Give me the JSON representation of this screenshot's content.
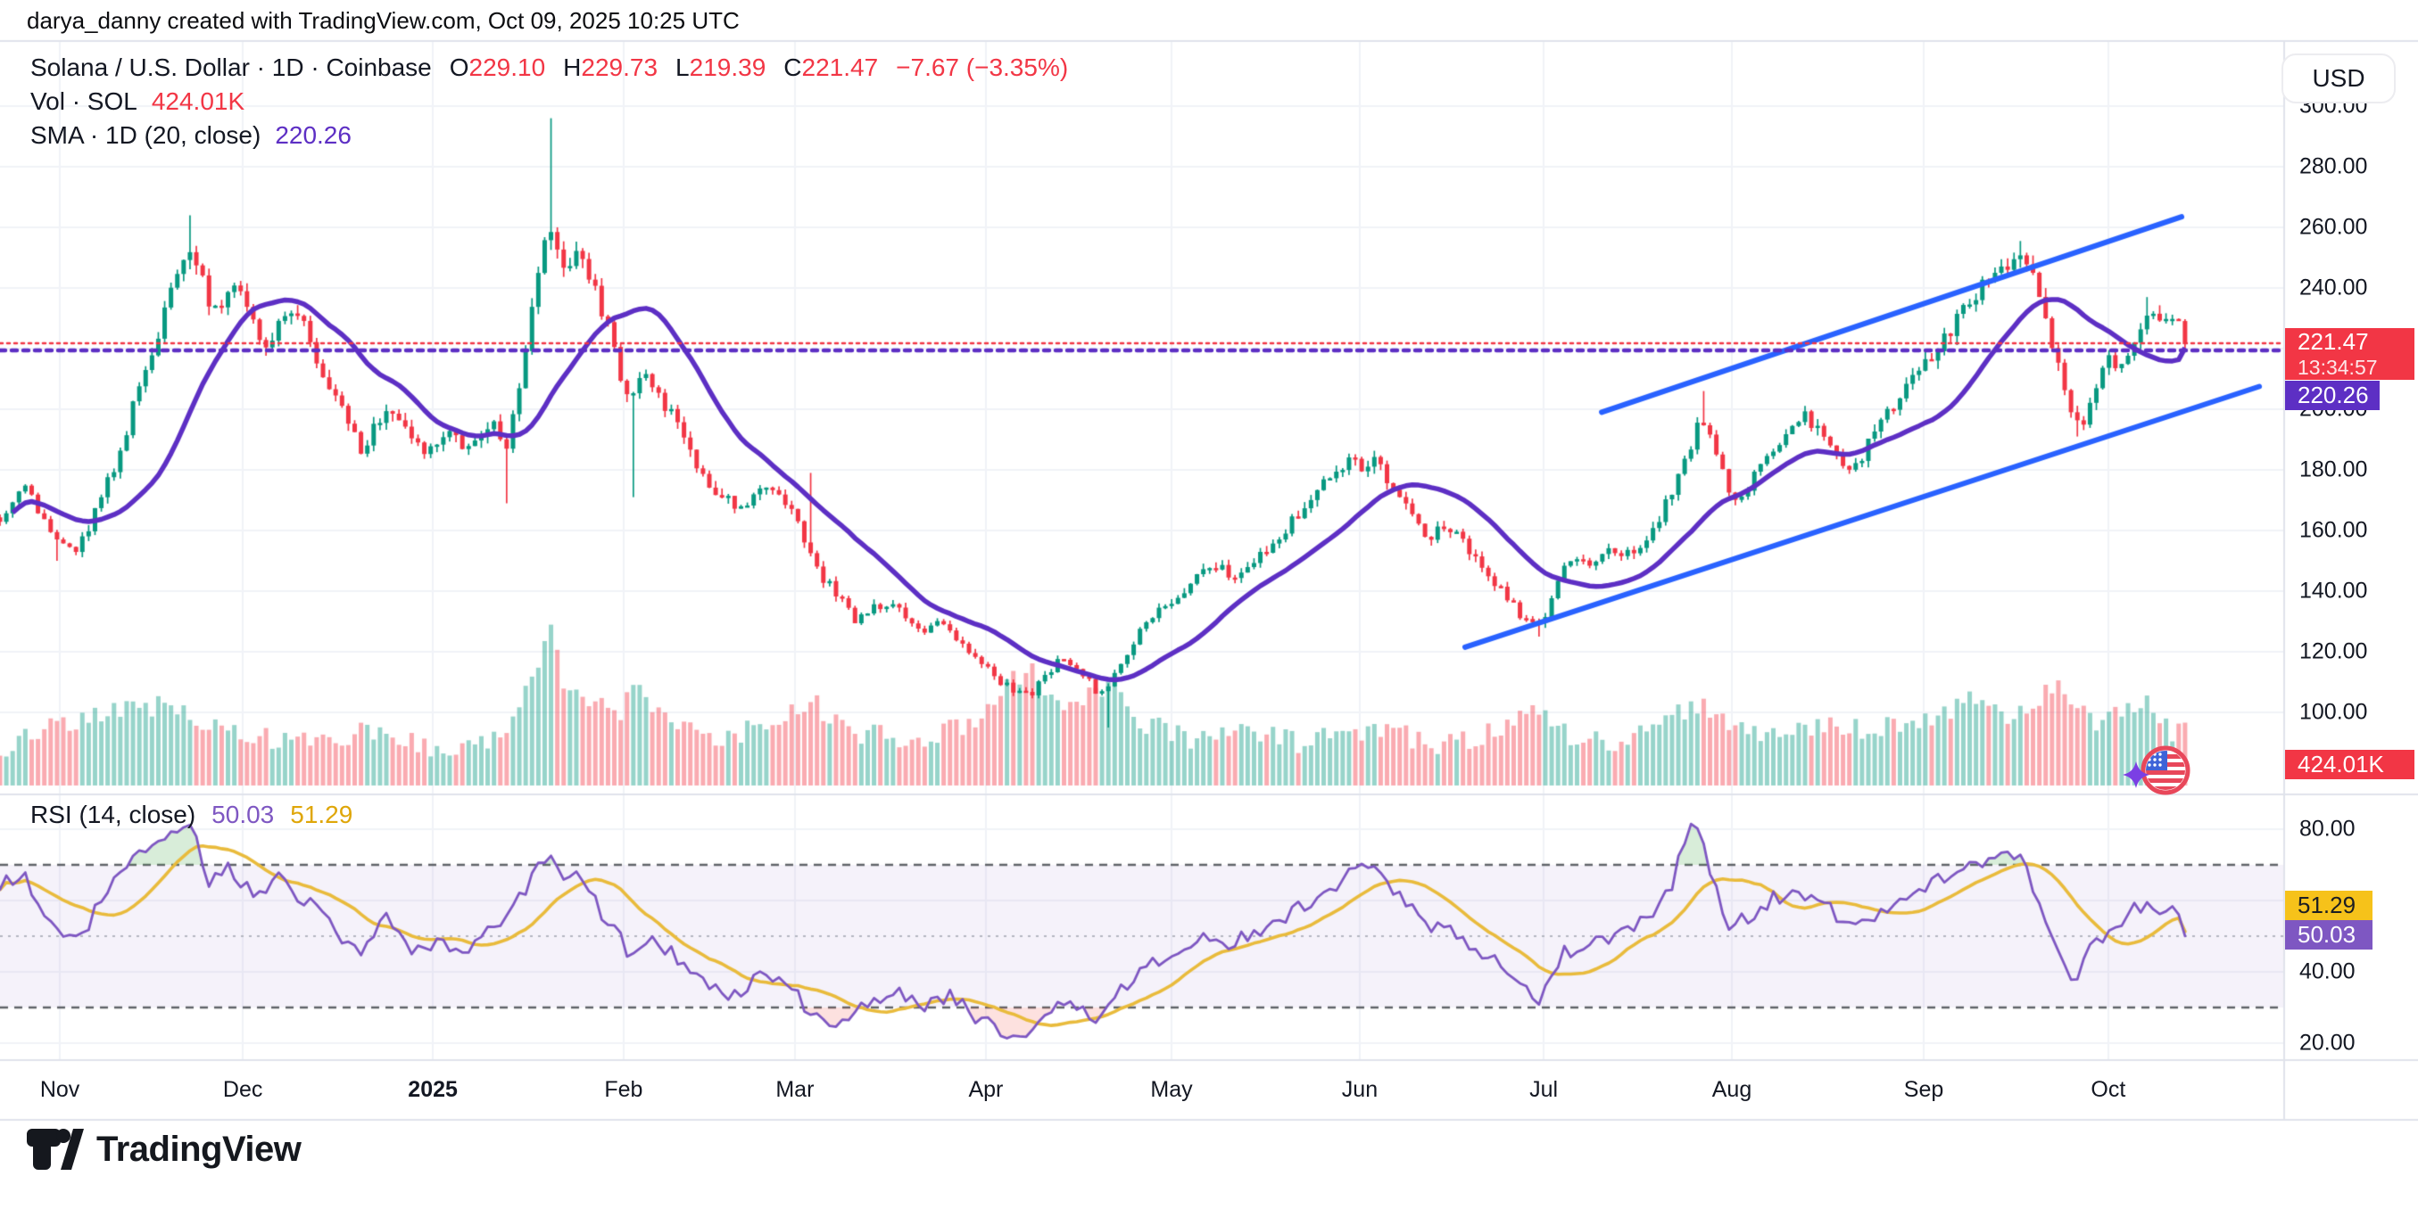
{
  "attribution": "darya_danny created with TradingView.com, Oct 09, 2025 10:25 UTC",
  "legend": {
    "title": "Solana / U.S. Dollar · 1D · Coinbase",
    "open": {
      "label": "O",
      "value": "229.10"
    },
    "high": {
      "label": "H",
      "value": "229.73"
    },
    "low": {
      "label": "L",
      "value": "219.39"
    },
    "close": {
      "label": "C",
      "value": "221.47"
    },
    "change": "−7.67 (−3.35%)",
    "vol_label": "Vol · SOL",
    "vol_value": "424.01K",
    "sma_label": "SMA · 1D (20, close)",
    "sma_value": "220.26"
  },
  "rsi_legend": {
    "title": "RSI (14, close)",
    "value": "50.03",
    "ma_value": "51.29"
  },
  "toolbar": {
    "currency": "USD"
  },
  "badges": {
    "last_price": "221.47",
    "countdown": "13:34:57",
    "sma": "220.26",
    "volume": "424.01K",
    "rsi_ma": "51.29",
    "rsi": "50.03"
  },
  "logo": {
    "wordmark": "TradingView"
  },
  "icons": [
    "tradingview-logo-icon",
    "us-flag-icon",
    "sparkle-icon"
  ],
  "chart_data": {
    "type": "candlestick",
    "symbol": "Solana / U.S. Dollar",
    "interval": "1D",
    "exchange": "Coinbase",
    "currency": "USD",
    "last_candle": {
      "open": 229.1,
      "high": 229.73,
      "low": 219.39,
      "close": 221.47
    },
    "change": -7.67,
    "change_pct": -3.35,
    "volume_label": "424.01K",
    "sma20_value": 220.26,
    "rsi_value": 50.03,
    "rsi_ma_value": 51.29,
    "countdown": "13:34:57",
    "price_axis": {
      "ticks": [
        300,
        280,
        260,
        240,
        200,
        180,
        160,
        140,
        120,
        100
      ],
      "grid": [
        300,
        280,
        260,
        240,
        220,
        200,
        180,
        160,
        140,
        120,
        100
      ],
      "visible_range": [
        76,
        322
      ]
    },
    "rsi_axis": {
      "ticks": [
        80,
        40,
        20
      ],
      "grid": [
        80,
        60,
        40,
        20
      ],
      "bands": [
        70,
        50,
        30
      ]
    },
    "time_axis": [
      {
        "label": "Nov",
        "t": 0.0262,
        "bold": false
      },
      {
        "label": "Dec",
        "t": 0.1063,
        "bold": false
      },
      {
        "label": "2025",
        "t": 0.1895,
        "bold": true
      },
      {
        "label": "Feb",
        "t": 0.273,
        "bold": false
      },
      {
        "label": "Mar",
        "t": 0.348,
        "bold": false
      },
      {
        "label": "Apr",
        "t": 0.4316,
        "bold": false
      },
      {
        "label": "May",
        "t": 0.5129,
        "bold": false
      },
      {
        "label": "Jun",
        "t": 0.5953,
        "bold": false
      },
      {
        "label": "Jul",
        "t": 0.6758,
        "bold": false
      },
      {
        "label": "Aug",
        "t": 0.7582,
        "bold": false
      },
      {
        "label": "Sep",
        "t": 0.8422,
        "bold": false
      },
      {
        "label": "Oct",
        "t": 0.923,
        "bold": false
      }
    ],
    "price_anchors": [
      [
        0.0,
        165
      ],
      [
        0.01,
        174
      ],
      [
        0.018,
        166
      ],
      [
        0.025,
        155
      ],
      [
        0.034,
        153
      ],
      [
        0.045,
        172
      ],
      [
        0.052,
        185
      ],
      [
        0.058,
        200
      ],
      [
        0.065,
        213
      ],
      [
        0.07,
        228
      ],
      [
        0.075,
        243
      ],
      [
        0.08,
        248
      ],
      [
        0.084,
        252
      ],
      [
        0.088,
        244
      ],
      [
        0.092,
        230
      ],
      [
        0.096,
        235
      ],
      [
        0.1,
        240
      ],
      [
        0.104,
        244
      ],
      [
        0.11,
        232
      ],
      [
        0.116,
        220
      ],
      [
        0.122,
        230
      ],
      [
        0.128,
        232
      ],
      [
        0.134,
        226
      ],
      [
        0.14,
        215
      ],
      [
        0.146,
        205
      ],
      [
        0.152,
        196
      ],
      [
        0.158,
        186
      ],
      [
        0.163,
        192
      ],
      [
        0.168,
        200
      ],
      [
        0.174,
        197
      ],
      [
        0.18,
        190
      ],
      [
        0.186,
        186
      ],
      [
        0.192,
        190
      ],
      [
        0.198,
        194
      ],
      [
        0.204,
        187
      ],
      [
        0.21,
        190
      ],
      [
        0.216,
        196
      ],
      [
        0.222,
        188
      ],
      [
        0.227,
        205
      ],
      [
        0.232,
        226
      ],
      [
        0.236,
        248
      ],
      [
        0.24,
        264
      ],
      [
        0.244,
        250
      ],
      [
        0.248,
        246
      ],
      [
        0.252,
        252
      ],
      [
        0.256,
        248
      ],
      [
        0.26,
        240
      ],
      [
        0.264,
        232
      ],
      [
        0.268,
        222
      ],
      [
        0.272,
        210
      ],
      [
        0.276,
        202
      ],
      [
        0.28,
        208
      ],
      [
        0.284,
        212
      ],
      [
        0.288,
        206
      ],
      [
        0.292,
        200
      ],
      [
        0.296,
        196
      ],
      [
        0.3,
        190
      ],
      [
        0.305,
        182
      ],
      [
        0.31,
        176
      ],
      [
        0.316,
        172
      ],
      [
        0.322,
        168
      ],
      [
        0.328,
        170
      ],
      [
        0.334,
        176
      ],
      [
        0.34,
        172
      ],
      [
        0.346,
        167
      ],
      [
        0.352,
        158
      ],
      [
        0.356,
        148
      ],
      [
        0.362,
        143
      ],
      [
        0.368,
        137
      ],
      [
        0.374,
        130
      ],
      [
        0.38,
        133
      ],
      [
        0.386,
        136
      ],
      [
        0.392,
        134
      ],
      [
        0.398,
        130
      ],
      [
        0.404,
        127
      ],
      [
        0.41,
        130
      ],
      [
        0.416,
        126
      ],
      [
        0.422,
        121
      ],
      [
        0.428,
        118
      ],
      [
        0.434,
        113
      ],
      [
        0.44,
        109
      ],
      [
        0.446,
        106
      ],
      [
        0.452,
        107
      ],
      [
        0.458,
        112
      ],
      [
        0.464,
        119
      ],
      [
        0.47,
        115
      ],
      [
        0.476,
        111
      ],
      [
        0.481,
        106
      ],
      [
        0.486,
        109
      ],
      [
        0.492,
        117
      ],
      [
        0.498,
        126
      ],
      [
        0.504,
        131
      ],
      [
        0.51,
        135
      ],
      [
        0.516,
        139
      ],
      [
        0.522,
        143
      ],
      [
        0.528,
        146
      ],
      [
        0.534,
        148
      ],
      [
        0.54,
        145
      ],
      [
        0.546,
        149
      ],
      [
        0.552,
        153
      ],
      [
        0.558,
        156
      ],
      [
        0.564,
        161
      ],
      [
        0.57,
        167
      ],
      [
        0.576,
        172
      ],
      [
        0.582,
        177
      ],
      [
        0.588,
        182
      ],
      [
        0.592,
        184
      ],
      [
        0.597,
        180
      ],
      [
        0.602,
        183
      ],
      [
        0.608,
        176
      ],
      [
        0.614,
        170
      ],
      [
        0.62,
        163
      ],
      [
        0.626,
        158
      ],
      [
        0.632,
        161
      ],
      [
        0.638,
        158
      ],
      [
        0.644,
        153
      ],
      [
        0.65,
        147
      ],
      [
        0.656,
        141
      ],
      [
        0.662,
        136
      ],
      [
        0.668,
        130
      ],
      [
        0.673,
        127
      ],
      [
        0.678,
        135
      ],
      [
        0.684,
        146
      ],
      [
        0.69,
        151
      ],
      [
        0.696,
        149
      ],
      [
        0.702,
        152
      ],
      [
        0.708,
        154
      ],
      [
        0.714,
        151
      ],
      [
        0.72,
        157
      ],
      [
        0.726,
        164
      ],
      [
        0.732,
        172
      ],
      [
        0.737,
        183
      ],
      [
        0.742,
        192
      ],
      [
        0.746,
        196
      ],
      [
        0.75,
        188
      ],
      [
        0.754,
        180
      ],
      [
        0.758,
        172
      ],
      [
        0.762,
        169
      ],
      [
        0.766,
        176
      ],
      [
        0.772,
        184
      ],
      [
        0.778,
        189
      ],
      [
        0.784,
        193
      ],
      [
        0.79,
        198
      ],
      [
        0.795,
        194
      ],
      [
        0.8,
        190
      ],
      [
        0.806,
        184
      ],
      [
        0.812,
        180
      ],
      [
        0.818,
        188
      ],
      [
        0.824,
        196
      ],
      [
        0.83,
        203
      ],
      [
        0.836,
        209
      ],
      [
        0.842,
        215
      ],
      [
        0.848,
        221
      ],
      [
        0.854,
        227
      ],
      [
        0.86,
        233
      ],
      [
        0.866,
        239
      ],
      [
        0.872,
        244
      ],
      [
        0.878,
        248
      ],
      [
        0.884,
        251
      ],
      [
        0.888,
        247
      ],
      [
        0.892,
        238
      ],
      [
        0.896,
        228
      ],
      [
        0.9,
        217
      ],
      [
        0.904,
        207
      ],
      [
        0.908,
        199
      ],
      [
        0.912,
        197
      ],
      [
        0.916,
        204
      ],
      [
        0.92,
        211
      ],
      [
        0.924,
        217
      ],
      [
        0.928,
        214
      ],
      [
        0.932,
        220
      ],
      [
        0.936,
        226
      ],
      [
        0.94,
        231
      ],
      [
        0.944,
        234
      ],
      [
        0.948,
        229
      ],
      [
        0.952,
        231
      ],
      [
        0.9566,
        221.47
      ]
    ],
    "wick_overrides": [
      {
        "t": 0.025,
        "low": 150
      },
      {
        "t": 0.084,
        "high": 264
      },
      {
        "t": 0.222,
        "low": 169
      },
      {
        "t": 0.24,
        "high": 296
      },
      {
        "t": 0.278,
        "low": 171
      },
      {
        "t": 0.354,
        "high": 179
      },
      {
        "t": 0.484,
        "low": 95
      },
      {
        "t": 0.673,
        "low": 125
      },
      {
        "t": 0.745,
        "high": 206
      },
      {
        "t": 0.885,
        "high": 255.5
      },
      {
        "t": 0.91,
        "low": 191
      },
      {
        "t": 0.941,
        "high": 237
      }
    ],
    "volume_anchors": [
      [
        0.0,
        0.1
      ],
      [
        0.03,
        0.25
      ],
      [
        0.05,
        0.3
      ],
      [
        0.07,
        0.35
      ],
      [
        0.083,
        0.3
      ],
      [
        0.1,
        0.2
      ],
      [
        0.13,
        0.12
      ],
      [
        0.163,
        0.2
      ],
      [
        0.19,
        0.1
      ],
      [
        0.22,
        0.15
      ],
      [
        0.236,
        0.55
      ],
      [
        0.24,
        0.85
      ],
      [
        0.248,
        0.4
      ],
      [
        0.262,
        0.35
      ],
      [
        0.272,
        0.3
      ],
      [
        0.278,
        0.45
      ],
      [
        0.3,
        0.2
      ],
      [
        0.32,
        0.15
      ],
      [
        0.354,
        0.38
      ],
      [
        0.37,
        0.2
      ],
      [
        0.4,
        0.15
      ],
      [
        0.43,
        0.25
      ],
      [
        0.44,
        0.45
      ],
      [
        0.452,
        0.55
      ],
      [
        0.465,
        0.3
      ],
      [
        0.484,
        0.45
      ],
      [
        0.5,
        0.25
      ],
      [
        0.52,
        0.15
      ],
      [
        0.547,
        0.2
      ],
      [
        0.57,
        0.12
      ],
      [
        0.6,
        0.22
      ],
      [
        0.63,
        0.12
      ],
      [
        0.658,
        0.2
      ],
      [
        0.672,
        0.3
      ],
      [
        0.69,
        0.15
      ],
      [
        0.71,
        0.12
      ],
      [
        0.735,
        0.3
      ],
      [
        0.745,
        0.35
      ],
      [
        0.76,
        0.2
      ],
      [
        0.78,
        0.18
      ],
      [
        0.8,
        0.22
      ],
      [
        0.82,
        0.2
      ],
      [
        0.84,
        0.25
      ],
      [
        0.852,
        0.3
      ],
      [
        0.862,
        0.4
      ],
      [
        0.878,
        0.3
      ],
      [
        0.89,
        0.35
      ],
      [
        0.9,
        0.45
      ],
      [
        0.915,
        0.25
      ],
      [
        0.93,
        0.3
      ],
      [
        0.942,
        0.35
      ],
      [
        0.95,
        0.2
      ],
      [
        0.9566,
        0.22
      ]
    ],
    "rsi": {
      "period": 14,
      "anchors": [
        [
          0.0,
          64
        ],
        [
          0.01,
          68
        ],
        [
          0.02,
          55
        ],
        [
          0.034,
          48
        ],
        [
          0.05,
          66
        ],
        [
          0.065,
          75
        ],
        [
          0.075,
          80
        ],
        [
          0.084,
          81
        ],
        [
          0.092,
          65
        ],
        [
          0.1,
          70
        ],
        [
          0.11,
          62
        ],
        [
          0.122,
          66
        ],
        [
          0.134,
          60
        ],
        [
          0.146,
          52
        ],
        [
          0.158,
          44
        ],
        [
          0.163,
          50
        ],
        [
          0.17,
          55
        ],
        [
          0.18,
          46
        ],
        [
          0.192,
          49
        ],
        [
          0.204,
          45
        ],
        [
          0.216,
          52
        ],
        [
          0.227,
          60
        ],
        [
          0.236,
          70
        ],
        [
          0.24,
          74
        ],
        [
          0.248,
          64
        ],
        [
          0.252,
          67
        ],
        [
          0.26,
          60
        ],
        [
          0.268,
          52
        ],
        [
          0.276,
          45
        ],
        [
          0.284,
          50
        ],
        [
          0.292,
          46
        ],
        [
          0.3,
          42
        ],
        [
          0.31,
          37
        ],
        [
          0.322,
          33
        ],
        [
          0.334,
          40
        ],
        [
          0.346,
          36
        ],
        [
          0.356,
          27
        ],
        [
          0.368,
          25
        ],
        [
          0.38,
          32
        ],
        [
          0.392,
          35
        ],
        [
          0.404,
          31
        ],
        [
          0.416,
          33
        ],
        [
          0.428,
          27
        ],
        [
          0.44,
          23
        ],
        [
          0.452,
          22
        ],
        [
          0.464,
          33
        ],
        [
          0.476,
          28
        ],
        [
          0.481,
          25
        ],
        [
          0.492,
          36
        ],
        [
          0.504,
          42
        ],
        [
          0.516,
          46
        ],
        [
          0.528,
          50
        ],
        [
          0.54,
          48
        ],
        [
          0.552,
          52
        ],
        [
          0.564,
          56
        ],
        [
          0.576,
          61
        ],
        [
          0.588,
          66
        ],
        [
          0.592,
          68
        ],
        [
          0.602,
          70
        ],
        [
          0.614,
          60
        ],
        [
          0.626,
          53
        ],
        [
          0.638,
          51
        ],
        [
          0.65,
          45
        ],
        [
          0.662,
          38
        ],
        [
          0.673,
          31
        ],
        [
          0.684,
          45
        ],
        [
          0.696,
          48
        ],
        [
          0.708,
          50
        ],
        [
          0.72,
          54
        ],
        [
          0.732,
          63
        ],
        [
          0.74,
          84
        ],
        [
          0.746,
          74
        ],
        [
          0.752,
          62
        ],
        [
          0.758,
          52
        ],
        [
          0.766,
          56
        ],
        [
          0.775,
          60
        ],
        [
          0.785,
          63
        ],
        [
          0.795,
          60
        ],
        [
          0.806,
          55
        ],
        [
          0.812,
          52
        ],
        [
          0.824,
          58
        ],
        [
          0.836,
          62
        ],
        [
          0.848,
          66
        ],
        [
          0.86,
          69
        ],
        [
          0.872,
          72
        ],
        [
          0.884,
          74
        ],
        [
          0.892,
          60
        ],
        [
          0.9,
          45
        ],
        [
          0.908,
          38
        ],
        [
          0.916,
          47
        ],
        [
          0.924,
          53
        ],
        [
          0.932,
          56
        ],
        [
          0.94,
          60
        ],
        [
          0.948,
          55
        ],
        [
          0.952,
          58
        ],
        [
          0.9566,
          50.03
        ]
      ]
    },
    "channel": {
      "upper": {
        "t1": 0.7012,
        "p1": 199.0,
        "t2": 0.9551,
        "p2": 263.5
      },
      "lower": {
        "t1": 0.6414,
        "p1": 121.5,
        "t2": 0.9891,
        "p2": 207.5
      }
    },
    "price_lines": [
      {
        "value": 221.47,
        "color": "#f23645"
      },
      {
        "value": 220.26,
        "color": "#5d2fc4"
      }
    ],
    "colors": {
      "up": "#089981",
      "down": "#f23645",
      "sma": "#5d2fc4",
      "channel": "#2962ff",
      "rsi": "#7e57c2",
      "rsi_ma": "#e9bb3c",
      "grid": "#f1f3f8",
      "separator": "#e0e3eb",
      "vol_up": "rgba(8,153,129,0.42)",
      "vol_down": "rgba(242,54,69,0.42)"
    }
  }
}
